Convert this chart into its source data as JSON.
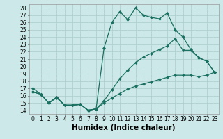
{
  "title": "",
  "xlabel": "Humidex (Indice chaleur)",
  "bg_color": "#cce8e8",
  "grid_color": "#b0d0d0",
  "line_color": "#1a7060",
  "xlim": [
    -0.5,
    23.5
  ],
  "ylim": [
    13.5,
    28.5
  ],
  "xticks": [
    0,
    1,
    2,
    3,
    4,
    5,
    6,
    7,
    8,
    9,
    10,
    11,
    12,
    13,
    14,
    15,
    16,
    17,
    18,
    19,
    20,
    21,
    22,
    23
  ],
  "yticks": [
    14,
    15,
    16,
    17,
    18,
    19,
    20,
    21,
    22,
    23,
    24,
    25,
    26,
    27,
    28
  ],
  "line1_x": [
    0,
    1,
    2,
    3,
    4,
    5,
    6,
    7,
    8,
    9,
    10,
    11,
    12,
    13,
    14,
    15,
    16,
    17,
    18,
    19,
    20,
    21,
    22,
    23
  ],
  "line1_y": [
    17.0,
    16.2,
    15.0,
    15.7,
    14.7,
    14.7,
    14.8,
    14.0,
    14.2,
    22.5,
    26.0,
    27.5,
    26.4,
    28.0,
    27.0,
    26.7,
    26.5,
    27.3,
    25.0,
    24.0,
    22.3,
    21.2,
    20.7,
    19.2
  ],
  "line2_x": [
    0,
    1,
    2,
    3,
    4,
    5,
    6,
    7,
    8,
    9,
    10,
    11,
    12,
    13,
    14,
    15,
    16,
    17,
    18,
    19,
    20,
    21,
    22,
    23
  ],
  "line2_y": [
    16.5,
    16.2,
    15.0,
    15.8,
    14.7,
    14.7,
    14.8,
    14.0,
    14.2,
    15.3,
    16.8,
    18.3,
    19.5,
    20.5,
    21.3,
    21.8,
    22.3,
    22.8,
    23.8,
    22.2,
    22.2,
    21.2,
    20.7,
    19.2
  ],
  "line3_x": [
    0,
    1,
    2,
    3,
    4,
    5,
    6,
    7,
    8,
    9,
    10,
    11,
    12,
    13,
    14,
    15,
    16,
    17,
    18,
    19,
    20,
    21,
    22,
    23
  ],
  "line3_y": [
    16.5,
    16.2,
    15.0,
    15.8,
    14.7,
    14.7,
    14.8,
    14.0,
    14.2,
    15.0,
    15.7,
    16.3,
    16.9,
    17.3,
    17.6,
    17.9,
    18.2,
    18.5,
    18.8,
    18.8,
    18.8,
    18.6,
    18.8,
    19.2
  ],
  "marker": "D",
  "markersize": 2.0,
  "linewidth": 0.9,
  "xlabel_fontsize": 7.5,
  "tick_fontsize": 5.5
}
